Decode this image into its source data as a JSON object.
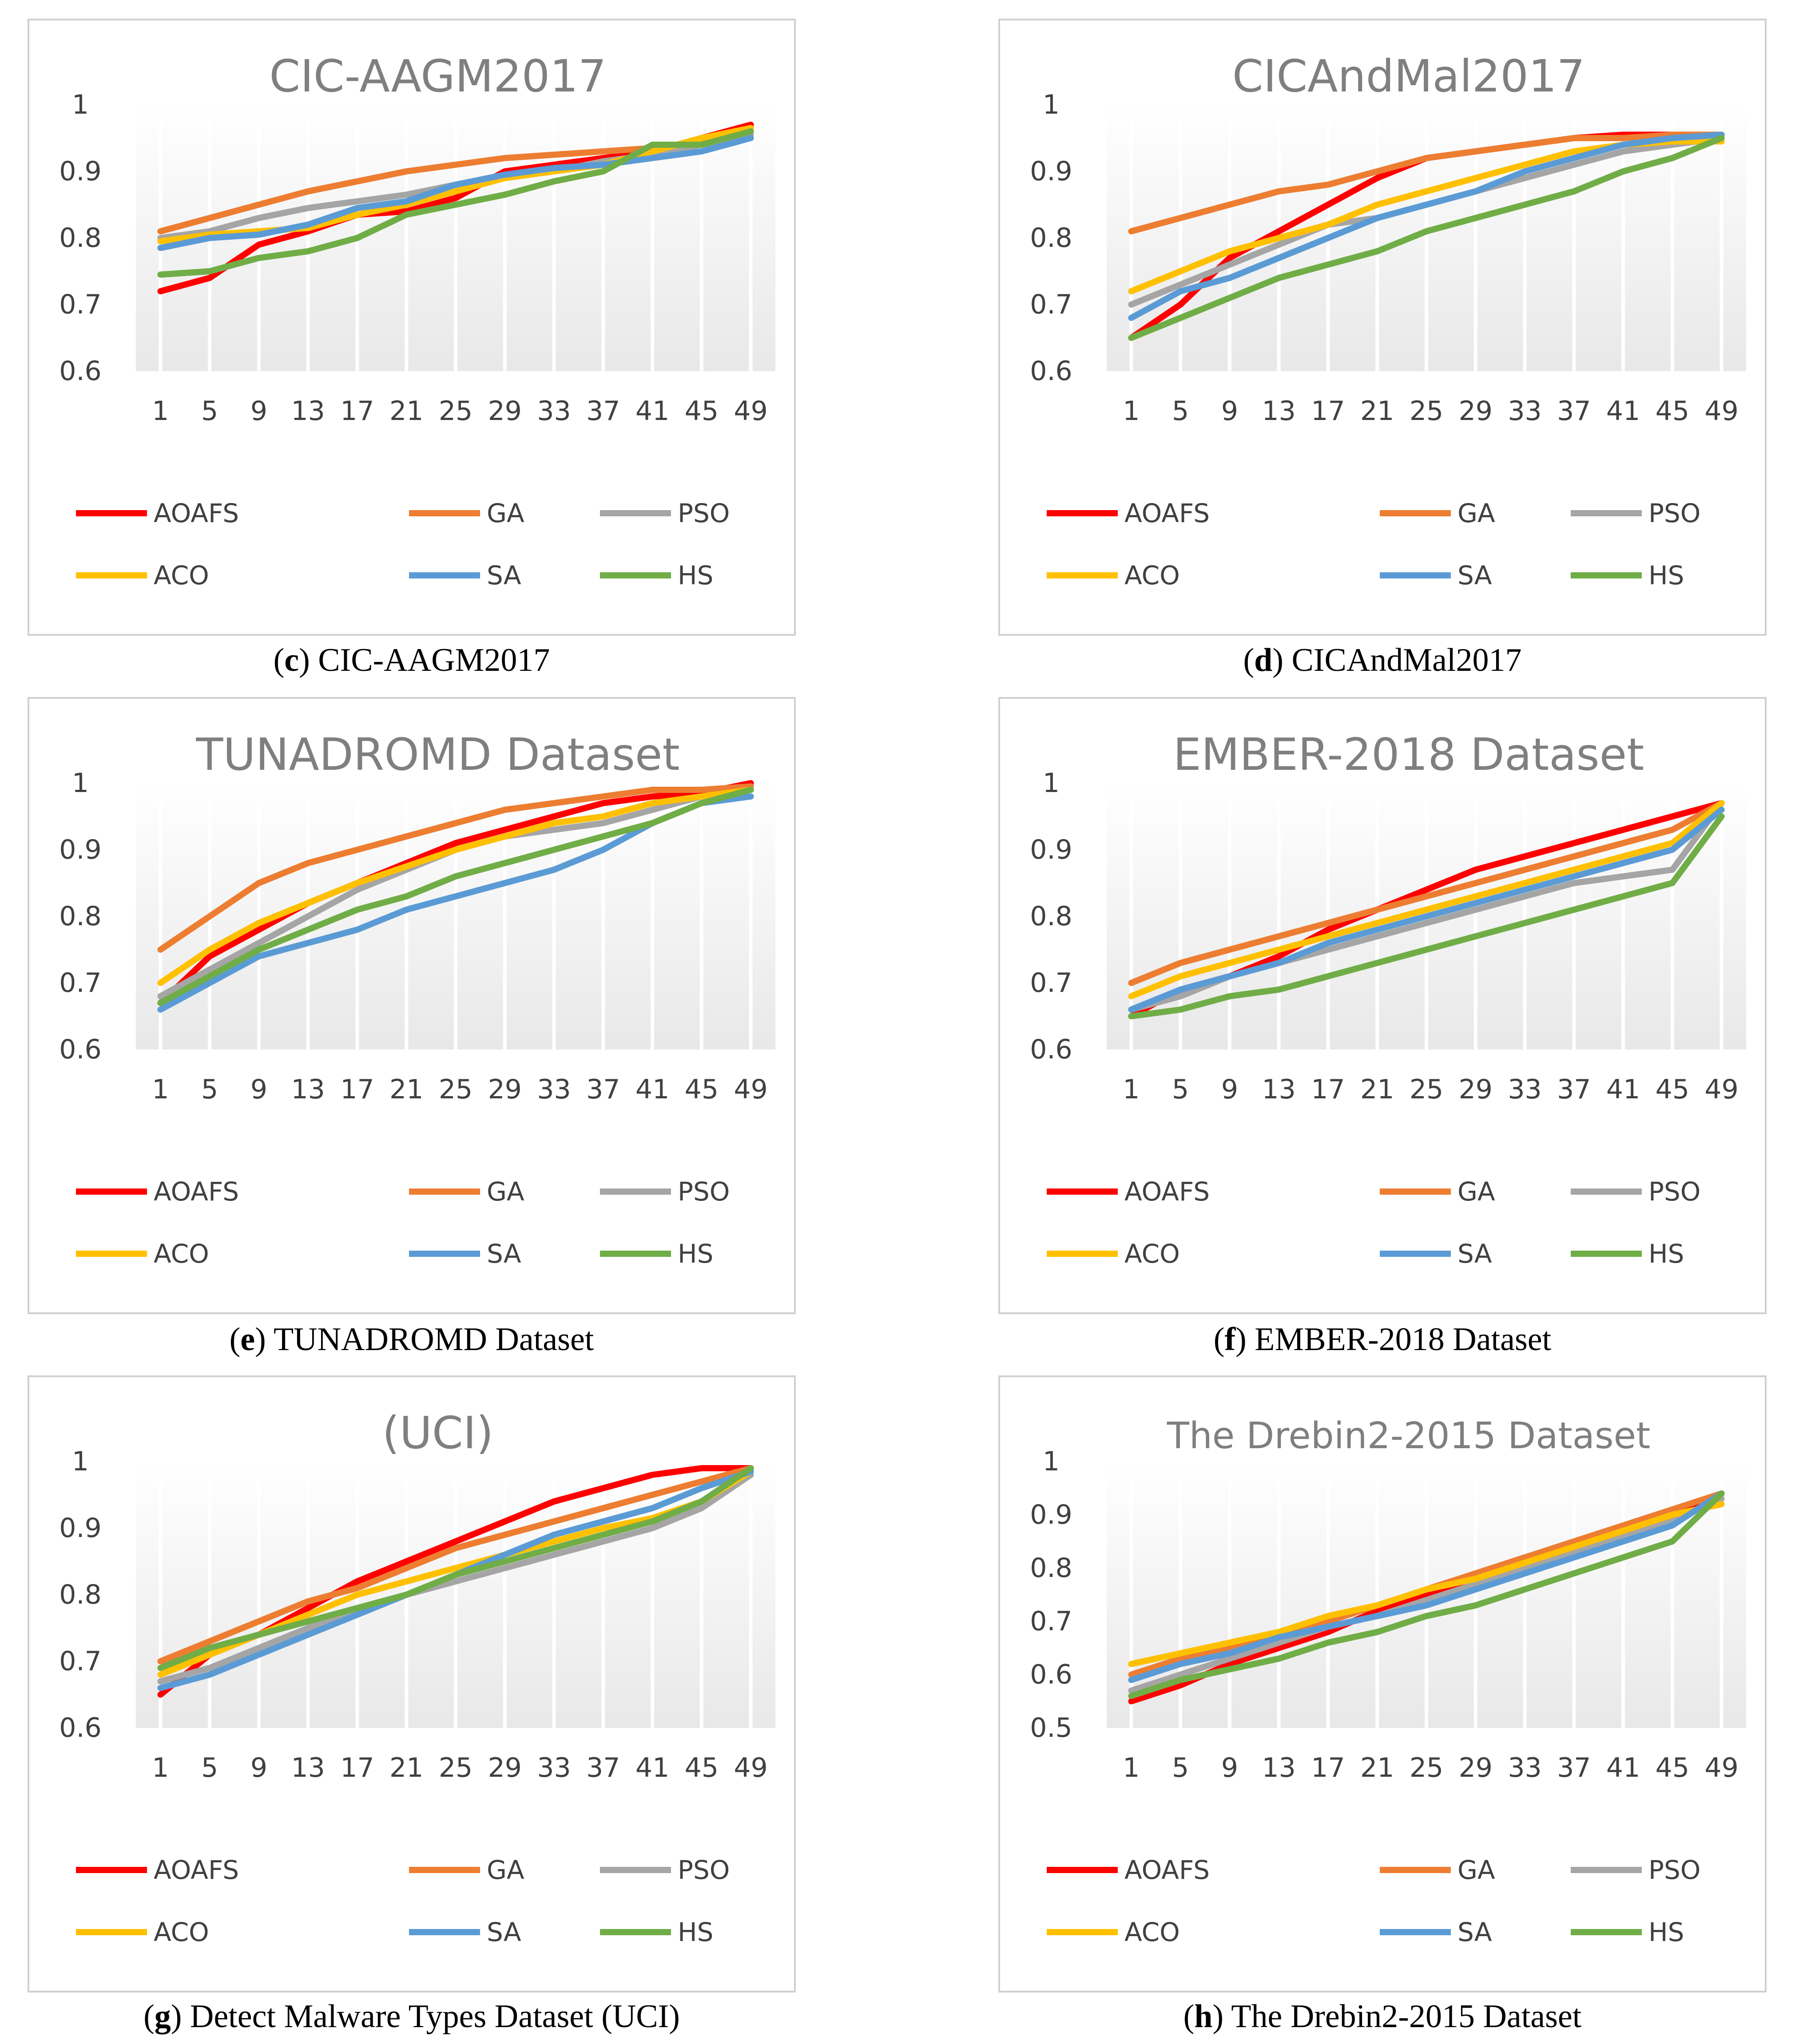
{
  "colors": {
    "AOAFS": "#ff0000",
    "GA": "#ed7d31",
    "PSO": "#a5a5a5",
    "ACO": "#ffc000",
    "SA": "#5b9bd5",
    "HS": "#70ad47"
  },
  "chart_data": [
    {
      "type": "line",
      "letter": "c",
      "caption_text": " CIC-AAGM2017",
      "title": "CIC-AAGM2017",
      "categories": [
        "1",
        "5",
        "9",
        "13",
        "17",
        "21",
        "25",
        "29",
        "33",
        "37",
        "41",
        "45",
        "49"
      ],
      "ylim": [
        0.6,
        1.0
      ],
      "yticks": [
        "0.6",
        "0.7",
        "0.8",
        "0.9",
        "1"
      ],
      "legend": "bottom",
      "series": [
        {
          "name": "AOAFS",
          "values": [
            0.72,
            0.74,
            0.79,
            0.81,
            0.835,
            0.84,
            0.86,
            0.9,
            0.91,
            0.92,
            0.93,
            0.95,
            0.97
          ]
        },
        {
          "name": "GA",
          "values": [
            0.81,
            0.83,
            0.85,
            0.87,
            0.885,
            0.9,
            0.91,
            0.92,
            0.925,
            0.93,
            0.935,
            0.945,
            0.96
          ]
        },
        {
          "name": "PSO",
          "values": [
            0.8,
            0.81,
            0.83,
            0.845,
            0.855,
            0.865,
            0.88,
            0.89,
            0.9,
            0.915,
            0.925,
            0.94,
            0.955
          ]
        },
        {
          "name": "ACO",
          "values": [
            0.795,
            0.805,
            0.81,
            0.815,
            0.835,
            0.85,
            0.87,
            0.89,
            0.9,
            0.91,
            0.93,
            0.95,
            0.965
          ]
        },
        {
          "name": "SA",
          "values": [
            0.785,
            0.8,
            0.805,
            0.82,
            0.845,
            0.855,
            0.88,
            0.895,
            0.905,
            0.91,
            0.92,
            0.93,
            0.95
          ]
        },
        {
          "name": "HS",
          "values": [
            0.745,
            0.75,
            0.77,
            0.78,
            0.8,
            0.835,
            0.85,
            0.865,
            0.885,
            0.9,
            0.94,
            0.94,
            0.96
          ]
        }
      ]
    },
    {
      "type": "line",
      "letter": "d",
      "caption_text": " CICAndMal2017",
      "title": "CICAndMal2017",
      "categories": [
        "1",
        "5",
        "9",
        "13",
        "17",
        "21",
        "25",
        "29",
        "33",
        "37",
        "41",
        "45",
        "49"
      ],
      "ylim": [
        0.6,
        1.0
      ],
      "yticks": [
        "0.6",
        "0.7",
        "0.8",
        "0.9",
        "1"
      ],
      "legend": "bottom",
      "series": [
        {
          "name": "AOAFS",
          "values": [
            0.65,
            0.7,
            0.77,
            0.81,
            0.85,
            0.89,
            0.92,
            0.93,
            0.94,
            0.95,
            0.955,
            0.955,
            0.955
          ]
        },
        {
          "name": "GA",
          "values": [
            0.81,
            0.83,
            0.85,
            0.87,
            0.88,
            0.9,
            0.92,
            0.93,
            0.94,
            0.95,
            0.95,
            0.955,
            0.955
          ]
        },
        {
          "name": "PSO",
          "values": [
            0.7,
            0.73,
            0.76,
            0.79,
            0.82,
            0.83,
            0.85,
            0.87,
            0.89,
            0.91,
            0.93,
            0.94,
            0.95
          ]
        },
        {
          "name": "ACO",
          "values": [
            0.72,
            0.75,
            0.78,
            0.8,
            0.82,
            0.85,
            0.87,
            0.89,
            0.91,
            0.93,
            0.94,
            0.945,
            0.945
          ]
        },
        {
          "name": "SA",
          "values": [
            0.68,
            0.72,
            0.74,
            0.77,
            0.8,
            0.83,
            0.85,
            0.87,
            0.9,
            0.92,
            0.94,
            0.95,
            0.955
          ]
        },
        {
          "name": "HS",
          "values": [
            0.65,
            0.68,
            0.71,
            0.74,
            0.76,
            0.78,
            0.81,
            0.83,
            0.85,
            0.87,
            0.9,
            0.92,
            0.95
          ]
        }
      ]
    },
    {
      "type": "line",
      "letter": "e",
      "caption_text": " TUNADROMD Dataset",
      "title": "TUNADROMD Dataset",
      "categories": [
        "1",
        "5",
        "9",
        "13",
        "17",
        "21",
        "25",
        "29",
        "33",
        "37",
        "41",
        "45",
        "49"
      ],
      "ylim": [
        0.6,
        1.0
      ],
      "yticks": [
        "0.6",
        "0.7",
        "0.8",
        "0.9",
        "1"
      ],
      "legend": "bottom",
      "series": [
        {
          "name": "AOAFS",
          "values": [
            0.67,
            0.74,
            0.78,
            0.82,
            0.85,
            0.88,
            0.91,
            0.93,
            0.95,
            0.97,
            0.98,
            0.985,
            1.0
          ]
        },
        {
          "name": "GA",
          "values": [
            0.75,
            0.8,
            0.85,
            0.88,
            0.9,
            0.92,
            0.94,
            0.96,
            0.97,
            0.98,
            0.99,
            0.99,
            0.995
          ]
        },
        {
          "name": "PSO",
          "values": [
            0.68,
            0.72,
            0.76,
            0.8,
            0.84,
            0.87,
            0.9,
            0.92,
            0.93,
            0.94,
            0.96,
            0.98,
            0.99
          ]
        },
        {
          "name": "ACO",
          "values": [
            0.7,
            0.75,
            0.79,
            0.82,
            0.85,
            0.875,
            0.9,
            0.92,
            0.94,
            0.95,
            0.97,
            0.98,
            0.99
          ]
        },
        {
          "name": "SA",
          "values": [
            0.66,
            0.7,
            0.74,
            0.76,
            0.78,
            0.81,
            0.83,
            0.85,
            0.87,
            0.9,
            0.94,
            0.97,
            0.98
          ]
        },
        {
          "name": "HS",
          "values": [
            0.67,
            0.71,
            0.75,
            0.78,
            0.81,
            0.83,
            0.86,
            0.88,
            0.9,
            0.92,
            0.94,
            0.97,
            0.99
          ]
        }
      ]
    },
    {
      "type": "line",
      "letter": "f",
      "caption_text": " EMBER-2018 Dataset",
      "title": "EMBER-2018 Dataset",
      "categories": [
        "1",
        "5",
        "9",
        "13",
        "17",
        "21",
        "25",
        "29",
        "33",
        "37",
        "41",
        "45",
        "49"
      ],
      "ylim": [
        0.6,
        1.0
      ],
      "yticks": [
        "0.6",
        "0.7",
        "0.8",
        "0.9",
        "1"
      ],
      "legend": "bottom",
      "series": [
        {
          "name": "AOAFS",
          "values": [
            0.65,
            0.69,
            0.71,
            0.74,
            0.78,
            0.81,
            0.84,
            0.87,
            0.89,
            0.91,
            0.93,
            0.95,
            0.97
          ]
        },
        {
          "name": "GA",
          "values": [
            0.7,
            0.73,
            0.75,
            0.77,
            0.79,
            0.81,
            0.83,
            0.85,
            0.87,
            0.89,
            0.91,
            0.93,
            0.97
          ]
        },
        {
          "name": "PSO",
          "values": [
            0.66,
            0.68,
            0.71,
            0.73,
            0.75,
            0.77,
            0.79,
            0.81,
            0.83,
            0.85,
            0.86,
            0.87,
            0.97
          ]
        },
        {
          "name": "ACO",
          "values": [
            0.68,
            0.71,
            0.73,
            0.75,
            0.77,
            0.79,
            0.81,
            0.83,
            0.85,
            0.87,
            0.89,
            0.91,
            0.97
          ]
        },
        {
          "name": "SA",
          "values": [
            0.66,
            0.69,
            0.71,
            0.73,
            0.76,
            0.78,
            0.8,
            0.82,
            0.84,
            0.86,
            0.88,
            0.9,
            0.96
          ]
        },
        {
          "name": "HS",
          "values": [
            0.65,
            0.66,
            0.68,
            0.69,
            0.71,
            0.73,
            0.75,
            0.77,
            0.79,
            0.81,
            0.83,
            0.85,
            0.95
          ]
        }
      ]
    },
    {
      "type": "line",
      "letter": "g",
      "caption_text": " Detect Malware Types Dataset (UCI)",
      "title": "(UCI)",
      "categories": [
        "1",
        "5",
        "9",
        "13",
        "17",
        "21",
        "25",
        "29",
        "33",
        "37",
        "41",
        "45",
        "49"
      ],
      "ylim": [
        0.6,
        1.0
      ],
      "yticks": [
        "0.6",
        "0.7",
        "0.8",
        "0.9",
        "1"
      ],
      "legend": "bottom",
      "series": [
        {
          "name": "AOAFS",
          "values": [
            0.65,
            0.71,
            0.74,
            0.78,
            0.82,
            0.85,
            0.88,
            0.91,
            0.94,
            0.96,
            0.98,
            0.99,
            0.99
          ]
        },
        {
          "name": "GA",
          "values": [
            0.7,
            0.73,
            0.76,
            0.79,
            0.81,
            0.84,
            0.87,
            0.89,
            0.91,
            0.93,
            0.95,
            0.97,
            0.99
          ]
        },
        {
          "name": "PSO",
          "values": [
            0.67,
            0.69,
            0.72,
            0.75,
            0.78,
            0.8,
            0.82,
            0.84,
            0.86,
            0.88,
            0.9,
            0.93,
            0.98
          ]
        },
        {
          "name": "ACO",
          "values": [
            0.68,
            0.71,
            0.74,
            0.77,
            0.8,
            0.82,
            0.84,
            0.86,
            0.88,
            0.9,
            0.915,
            0.94,
            0.985
          ]
        },
        {
          "name": "SA",
          "values": [
            0.66,
            0.68,
            0.71,
            0.74,
            0.77,
            0.8,
            0.83,
            0.86,
            0.89,
            0.91,
            0.93,
            0.96,
            0.985
          ]
        },
        {
          "name": "HS",
          "values": [
            0.69,
            0.72,
            0.74,
            0.76,
            0.78,
            0.8,
            0.83,
            0.85,
            0.87,
            0.89,
            0.91,
            0.94,
            0.99
          ]
        }
      ]
    },
    {
      "type": "line",
      "letter": "h",
      "caption_text": " The Drebin2-2015 Dataset",
      "title": "The Drebin2-2015 Dataset",
      "categories": [
        "1",
        "5",
        "9",
        "13",
        "17",
        "21",
        "25",
        "29",
        "33",
        "37",
        "41",
        "45",
        "49"
      ],
      "ylim": [
        0.5,
        1.0
      ],
      "yticks": [
        "0.5",
        "0.6",
        "0.7",
        "0.8",
        "0.9",
        "1"
      ],
      "legend": "bottom",
      "series": [
        {
          "name": "AOAFS",
          "values": [
            0.55,
            0.58,
            0.62,
            0.65,
            0.68,
            0.72,
            0.75,
            0.78,
            0.81,
            0.84,
            0.87,
            0.9,
            0.94
          ]
        },
        {
          "name": "GA",
          "values": [
            0.6,
            0.63,
            0.65,
            0.67,
            0.7,
            0.73,
            0.76,
            0.79,
            0.82,
            0.85,
            0.88,
            0.91,
            0.94
          ]
        },
        {
          "name": "PSO",
          "values": [
            0.57,
            0.6,
            0.63,
            0.66,
            0.69,
            0.71,
            0.74,
            0.77,
            0.8,
            0.83,
            0.86,
            0.89,
            0.93
          ]
        },
        {
          "name": "ACO",
          "values": [
            0.62,
            0.64,
            0.66,
            0.68,
            0.71,
            0.73,
            0.76,
            0.78,
            0.81,
            0.84,
            0.87,
            0.9,
            0.92
          ]
        },
        {
          "name": "SA",
          "values": [
            0.59,
            0.62,
            0.64,
            0.67,
            0.69,
            0.71,
            0.73,
            0.76,
            0.79,
            0.82,
            0.85,
            0.88,
            0.94
          ]
        },
        {
          "name": "HS",
          "values": [
            0.56,
            0.59,
            0.61,
            0.63,
            0.66,
            0.68,
            0.71,
            0.73,
            0.76,
            0.79,
            0.82,
            0.85,
            0.94
          ]
        }
      ]
    }
  ]
}
